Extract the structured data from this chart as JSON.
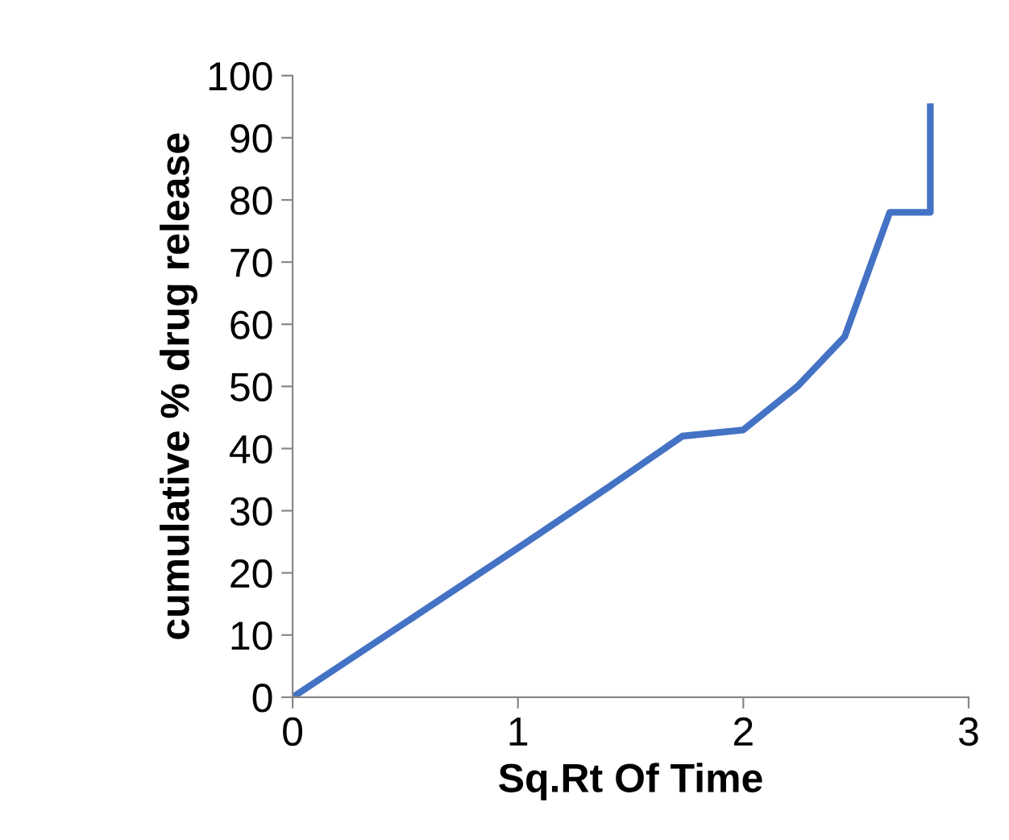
{
  "chart_data": {
    "type": "line",
    "xlabel": "Sq.Rt Of Time",
    "ylabel": "cumulative % drug release",
    "x": [
      0,
      1,
      1.41,
      1.73,
      2,
      2.24,
      2.45,
      2.65,
      2.83,
      2.83
    ],
    "series": [
      {
        "color": "#4472c4",
        "values": [
          0,
          24,
          34,
          42,
          43,
          50,
          58,
          78,
          78,
          95
        ]
      }
    ],
    "xlim": [
      0,
      3
    ],
    "xticks": [
      0,
      1,
      2,
      3
    ],
    "ylim": [
      0,
      100
    ],
    "yticks": [
      0,
      10,
      20,
      30,
      40,
      50,
      60,
      70,
      80,
      90,
      100
    ],
    "grid": false,
    "legend": false,
    "marker": "none",
    "line_style": "solid"
  }
}
